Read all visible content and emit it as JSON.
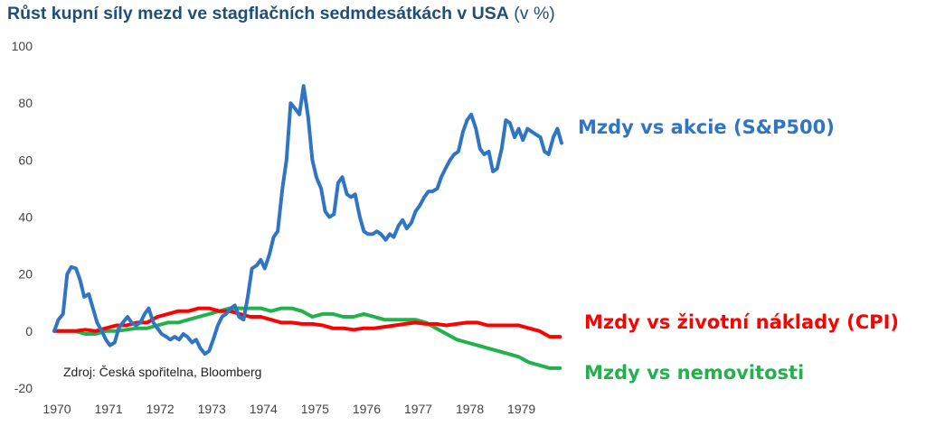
{
  "title": {
    "main": "Růst kupní síly mezd ve stagflačních sedmdesátkách v USA",
    "unit": "(v %)"
  },
  "source": "Zdroj: Česká spořitelna, Bloomberg",
  "chart_data": {
    "type": "line",
    "title": "Růst kupní síly mezd ve stagflačních sedmdesátkách v USA (v %)",
    "xlabel": "",
    "ylabel": "",
    "ylim": [
      -20,
      100
    ],
    "yticks": [
      -20,
      0,
      20,
      40,
      60,
      80,
      100
    ],
    "xticks": [
      "1970",
      "1971",
      "1972",
      "1973",
      "1974",
      "1975",
      "1976",
      "1977",
      "1978",
      "1979"
    ],
    "xlim": [
      1970,
      1979.9
    ],
    "grid": false,
    "series": [
      {
        "name": "Mzdy vs akcie (S&P500)",
        "color": "#2f75c4",
        "points": [
          [
            1970.0,
            0
          ],
          [
            1970.08,
            4
          ],
          [
            1970.17,
            6
          ],
          [
            1970.25,
            20
          ],
          [
            1970.33,
            22.5
          ],
          [
            1970.42,
            22
          ],
          [
            1970.5,
            18
          ],
          [
            1970.58,
            12
          ],
          [
            1970.67,
            13
          ],
          [
            1970.75,
            8
          ],
          [
            1970.83,
            3
          ],
          [
            1970.92,
            0
          ],
          [
            1971.0,
            -3
          ],
          [
            1971.08,
            -5
          ],
          [
            1971.17,
            -4
          ],
          [
            1971.25,
            1
          ],
          [
            1971.33,
            3
          ],
          [
            1971.42,
            5
          ],
          [
            1971.5,
            3
          ],
          [
            1971.58,
            2
          ],
          [
            1971.67,
            3
          ],
          [
            1971.75,
            6
          ],
          [
            1971.83,
            8
          ],
          [
            1971.92,
            3
          ],
          [
            1972.0,
            1
          ],
          [
            1972.08,
            -1
          ],
          [
            1972.17,
            -2
          ],
          [
            1972.25,
            -3
          ],
          [
            1972.33,
            -2
          ],
          [
            1972.42,
            -3
          ],
          [
            1972.5,
            -1
          ],
          [
            1972.58,
            -2
          ],
          [
            1972.67,
            -4
          ],
          [
            1972.75,
            -3
          ],
          [
            1972.83,
            -6
          ],
          [
            1972.92,
            -8
          ],
          [
            1973.0,
            -7
          ],
          [
            1973.08,
            -3
          ],
          [
            1973.17,
            2
          ],
          [
            1973.25,
            5
          ],
          [
            1973.33,
            6
          ],
          [
            1973.42,
            8
          ],
          [
            1973.5,
            9
          ],
          [
            1973.58,
            5
          ],
          [
            1973.67,
            4
          ],
          [
            1973.75,
            12
          ],
          [
            1973.83,
            22
          ],
          [
            1973.92,
            23
          ],
          [
            1974.0,
            25
          ],
          [
            1974.08,
            22
          ],
          [
            1974.17,
            27
          ],
          [
            1974.25,
            33
          ],
          [
            1974.33,
            35
          ],
          [
            1974.42,
            50
          ],
          [
            1974.5,
            60
          ],
          [
            1974.58,
            80
          ],
          [
            1974.67,
            78
          ],
          [
            1974.75,
            76
          ],
          [
            1974.83,
            86
          ],
          [
            1974.92,
            75
          ],
          [
            1975.0,
            60
          ],
          [
            1975.08,
            54
          ],
          [
            1975.17,
            50
          ],
          [
            1975.25,
            42
          ],
          [
            1975.33,
            40
          ],
          [
            1975.42,
            41
          ],
          [
            1975.5,
            52
          ],
          [
            1975.58,
            54
          ],
          [
            1975.67,
            48
          ],
          [
            1975.75,
            47
          ],
          [
            1975.83,
            48
          ],
          [
            1975.92,
            40
          ],
          [
            1976.0,
            35
          ],
          [
            1976.08,
            34
          ],
          [
            1976.17,
            34
          ],
          [
            1976.25,
            35
          ],
          [
            1976.33,
            34
          ],
          [
            1976.42,
            32
          ],
          [
            1976.5,
            34
          ],
          [
            1976.58,
            33
          ],
          [
            1976.67,
            37
          ],
          [
            1976.75,
            39
          ],
          [
            1976.83,
            36
          ],
          [
            1976.92,
            38
          ],
          [
            1977.0,
            42
          ],
          [
            1977.08,
            44
          ],
          [
            1977.17,
            47
          ],
          [
            1977.25,
            49
          ],
          [
            1977.33,
            49
          ],
          [
            1977.42,
            50
          ],
          [
            1977.5,
            54
          ],
          [
            1977.58,
            57
          ],
          [
            1977.67,
            60
          ],
          [
            1977.75,
            62
          ],
          [
            1977.83,
            63
          ],
          [
            1977.92,
            70
          ],
          [
            1978.0,
            74
          ],
          [
            1978.08,
            76
          ],
          [
            1978.17,
            71
          ],
          [
            1978.25,
            64
          ],
          [
            1978.33,
            62
          ],
          [
            1978.42,
            63
          ],
          [
            1978.5,
            56
          ],
          [
            1978.58,
            57
          ],
          [
            1978.67,
            64
          ],
          [
            1978.75,
            74
          ],
          [
            1978.83,
            73
          ],
          [
            1978.92,
            68
          ],
          [
            1979.0,
            71
          ],
          [
            1979.08,
            67
          ],
          [
            1979.17,
            71
          ],
          [
            1979.25,
            70
          ],
          [
            1979.33,
            69
          ],
          [
            1979.42,
            68
          ],
          [
            1979.5,
            63
          ],
          [
            1979.58,
            62
          ],
          [
            1979.67,
            68
          ],
          [
            1979.75,
            71
          ],
          [
            1979.83,
            66
          ]
        ]
      },
      {
        "name": "Mzdy vs životní náklady (CPI)",
        "color": "#ff0000",
        "points": [
          [
            1970.0,
            0
          ],
          [
            1970.2,
            0
          ],
          [
            1970.4,
            0
          ],
          [
            1970.6,
            0.5
          ],
          [
            1970.8,
            0
          ],
          [
            1971.0,
            1
          ],
          [
            1971.2,
            2
          ],
          [
            1971.4,
            2
          ],
          [
            1971.6,
            3
          ],
          [
            1971.8,
            3
          ],
          [
            1972.0,
            5
          ],
          [
            1972.2,
            6
          ],
          [
            1972.4,
            7
          ],
          [
            1972.6,
            7
          ],
          [
            1972.8,
            8
          ],
          [
            1973.0,
            8
          ],
          [
            1973.2,
            7
          ],
          [
            1973.4,
            7
          ],
          [
            1973.6,
            6
          ],
          [
            1973.8,
            5
          ],
          [
            1974.0,
            5
          ],
          [
            1974.2,
            4
          ],
          [
            1974.4,
            3
          ],
          [
            1974.6,
            3
          ],
          [
            1974.8,
            2.5
          ],
          [
            1975.0,
            2.5
          ],
          [
            1975.2,
            2
          ],
          [
            1975.4,
            1
          ],
          [
            1975.6,
            1
          ],
          [
            1975.8,
            0.5
          ],
          [
            1976.0,
            1
          ],
          [
            1976.2,
            1
          ],
          [
            1976.4,
            1.5
          ],
          [
            1976.6,
            2
          ],
          [
            1976.8,
            2.5
          ],
          [
            1977.0,
            3
          ],
          [
            1977.2,
            2.5
          ],
          [
            1977.4,
            2.5
          ],
          [
            1977.6,
            2
          ],
          [
            1977.8,
            2.5
          ],
          [
            1978.0,
            3
          ],
          [
            1978.2,
            3
          ],
          [
            1978.4,
            2
          ],
          [
            1978.6,
            2
          ],
          [
            1978.8,
            2
          ],
          [
            1979.0,
            2
          ],
          [
            1979.2,
            1
          ],
          [
            1979.4,
            0
          ],
          [
            1979.6,
            -2
          ],
          [
            1979.8,
            -2
          ]
        ]
      },
      {
        "name": "Mzdy vs nemovitosti",
        "color": "#22b14c",
        "points": [
          [
            1970.0,
            0
          ],
          [
            1970.2,
            0
          ],
          [
            1970.4,
            0
          ],
          [
            1970.6,
            -1
          ],
          [
            1970.8,
            -1
          ],
          [
            1971.0,
            0
          ],
          [
            1971.2,
            0
          ],
          [
            1971.4,
            0.5
          ],
          [
            1971.6,
            1
          ],
          [
            1971.8,
            1
          ],
          [
            1972.0,
            2
          ],
          [
            1972.2,
            3
          ],
          [
            1972.4,
            3
          ],
          [
            1972.6,
            4
          ],
          [
            1972.8,
            5
          ],
          [
            1973.0,
            6
          ],
          [
            1973.2,
            7
          ],
          [
            1973.4,
            8
          ],
          [
            1973.6,
            8
          ],
          [
            1973.8,
            8
          ],
          [
            1974.0,
            8
          ],
          [
            1974.2,
            7
          ],
          [
            1974.4,
            8
          ],
          [
            1974.6,
            8
          ],
          [
            1974.8,
            7
          ],
          [
            1975.0,
            5
          ],
          [
            1975.2,
            6
          ],
          [
            1975.4,
            6
          ],
          [
            1975.6,
            5
          ],
          [
            1975.8,
            5
          ],
          [
            1976.0,
            6
          ],
          [
            1976.2,
            5
          ],
          [
            1976.4,
            4
          ],
          [
            1976.6,
            4
          ],
          [
            1976.8,
            4
          ],
          [
            1977.0,
            4
          ],
          [
            1977.2,
            3
          ],
          [
            1977.4,
            1
          ],
          [
            1977.6,
            -1
          ],
          [
            1977.8,
            -3
          ],
          [
            1978.0,
            -4
          ],
          [
            1978.2,
            -5
          ],
          [
            1978.4,
            -6
          ],
          [
            1978.6,
            -7
          ],
          [
            1978.8,
            -8
          ],
          [
            1979.0,
            -9
          ],
          [
            1979.2,
            -11
          ],
          [
            1979.4,
            -12
          ],
          [
            1979.6,
            -13
          ],
          [
            1979.8,
            -13
          ]
        ]
      }
    ]
  }
}
